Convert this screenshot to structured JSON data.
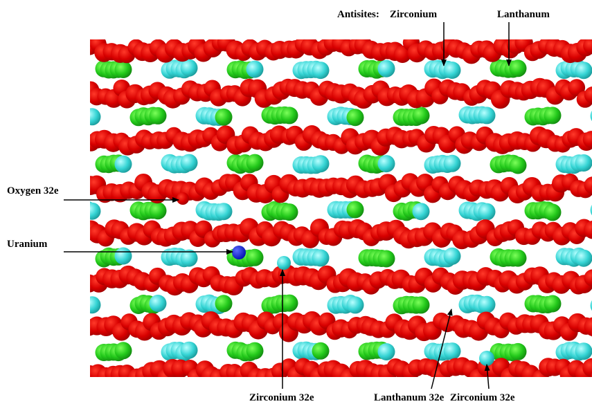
{
  "labels": {
    "antisites": "Antisites:",
    "top_zirconium": "Zirconium",
    "top_lanthanum": "Lanthanum",
    "oxygen": "Oxygen 32e",
    "uranium": "Uranium",
    "bottom_zirconium_left": "Zirconium 32e",
    "bottom_lanthanum": "Lanthanum 32e",
    "bottom_zirconium_right": "Zirconium 32e"
  }
}
